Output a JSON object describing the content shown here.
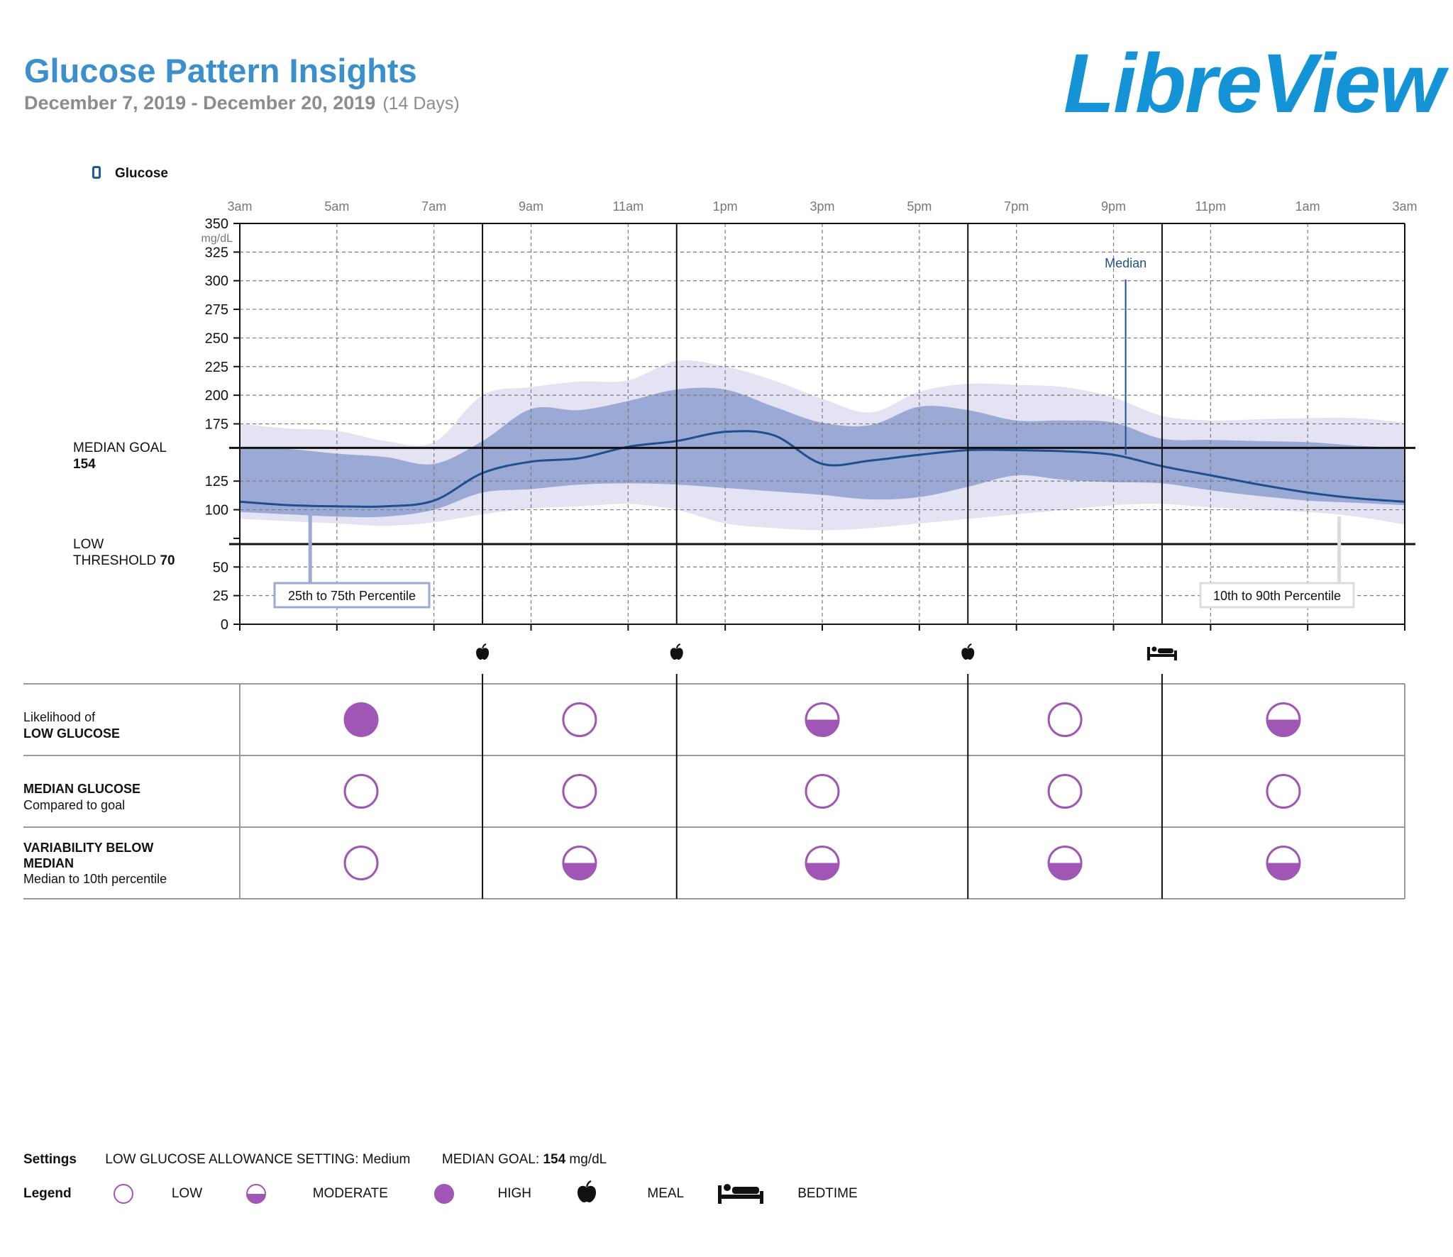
{
  "header": {
    "title": "Glucose Pattern Insights",
    "date_range": "December 7, 2019 - December 20, 2019",
    "day_count": "(14 Days)",
    "brand": "LibreView"
  },
  "legend_top": {
    "label": "Glucose"
  },
  "side_labels": {
    "median_goal_label": "MEDIAN GOAL",
    "median_goal_value": "154",
    "low_threshold_label_1": "LOW",
    "low_threshold_label_2": "THRESHOLD",
    "low_threshold_value": "70"
  },
  "chart_data": {
    "type": "area",
    "title": "Glucose",
    "ylabel": "mg/dL",
    "ylim": [
      0,
      350
    ],
    "y_ticks": [
      0,
      25,
      50,
      100,
      125,
      175,
      200,
      225,
      250,
      275,
      300,
      325,
      350
    ],
    "x_hours": [
      3,
      27
    ],
    "x_tick_labels": [
      "3am",
      "5am",
      "7am",
      "9am",
      "11am",
      "1pm",
      "3pm",
      "5pm",
      "7pm",
      "9pm",
      "11pm",
      "1am",
      "3am"
    ],
    "median_goal": 154,
    "low_threshold": 70,
    "period_boundaries_hours": [
      8,
      12,
      18,
      22
    ],
    "meal_markers_hours": [
      8,
      12,
      18
    ],
    "bedtime_marker_hour": 22,
    "x": [
      3,
      4,
      5,
      6,
      7,
      8,
      9,
      10,
      11,
      12,
      13,
      14,
      15,
      16,
      17,
      18,
      19,
      20,
      21,
      22,
      23,
      24,
      25,
      26,
      27
    ],
    "series": [
      {
        "name": "10th Percentile",
        "values": [
          92,
          90,
          88,
          86,
          89,
          96,
          101,
          103,
          105,
          100,
          88,
          84,
          82,
          84,
          88,
          92,
          96,
          100,
          104,
          105,
          102,
          100,
          98,
          94,
          87
        ]
      },
      {
        "name": "25th Percentile",
        "values": [
          98,
          96,
          94,
          94,
          100,
          115,
          118,
          122,
          123,
          122,
          119,
          116,
          113,
          109,
          111,
          120,
          130,
          126,
          124,
          123,
          117,
          112,
          108,
          106,
          104
        ]
      },
      {
        "name": "Median",
        "values": [
          107,
          104,
          103,
          103,
          108,
          132,
          142,
          145,
          155,
          160,
          168,
          165,
          140,
          143,
          148,
          152,
          152,
          151,
          148,
          138,
          130,
          122,
          115,
          110,
          107
        ]
      },
      {
        "name": "75th Percentile",
        "values": [
          154,
          153,
          149,
          146,
          140,
          160,
          188,
          187,
          195,
          205,
          205,
          190,
          176,
          174,
          190,
          187,
          178,
          178,
          176,
          162,
          161,
          160,
          159,
          156,
          154
        ]
      },
      {
        "name": "90th Percentile",
        "values": [
          175,
          171,
          169,
          160,
          159,
          200,
          207,
          212,
          213,
          230,
          225,
          213,
          197,
          185,
          203,
          210,
          209,
          207,
          198,
          182,
          178,
          179,
          180,
          180,
          176
        ]
      }
    ],
    "callouts": {
      "iqr": "25th to 75th Percentile",
      "outer": "10th to 90th Percentile",
      "median": "Median"
    }
  },
  "table": {
    "rows": [
      {
        "line1": "Likelihood of",
        "line2": "LOW GLUCOSE",
        "line3": "",
        "levels": [
          "high",
          "low",
          "moderate",
          "low",
          "moderate"
        ]
      },
      {
        "line1": "MEDIAN GLUCOSE",
        "line2": "Compared to goal",
        "line3": "",
        "levels": [
          "low",
          "low",
          "low",
          "low",
          "low"
        ]
      },
      {
        "line1": "VARIABILITY BELOW",
        "line2": "MEDIAN",
        "line3": "Median to 10th percentile",
        "levels": [
          "low",
          "moderate",
          "moderate",
          "moderate",
          "moderate"
        ]
      }
    ]
  },
  "footer": {
    "settings_title": "Settings",
    "allowance_label": "LOW GLUCOSE ALLOWANCE SETTING:",
    "allowance_value": "Medium",
    "median_goal_label": "MEDIAN GOAL:",
    "median_goal_value": "154",
    "median_goal_unit": "mg/dL",
    "legend_title": "Legend",
    "low_label": "LOW",
    "moderate_label": "MODERATE",
    "high_label": "HIGH",
    "meal_label": "MEAL",
    "bedtime_label": "BEDTIME"
  },
  "colors": {
    "title_blue": "#3a8fcc",
    "brand_blue": "#1493d6",
    "median_line": "#1f4f8f",
    "iqr_fill": "#9aaad4",
    "outer_fill": "#e4e3f3",
    "indicator_purple": "#a056b4"
  }
}
